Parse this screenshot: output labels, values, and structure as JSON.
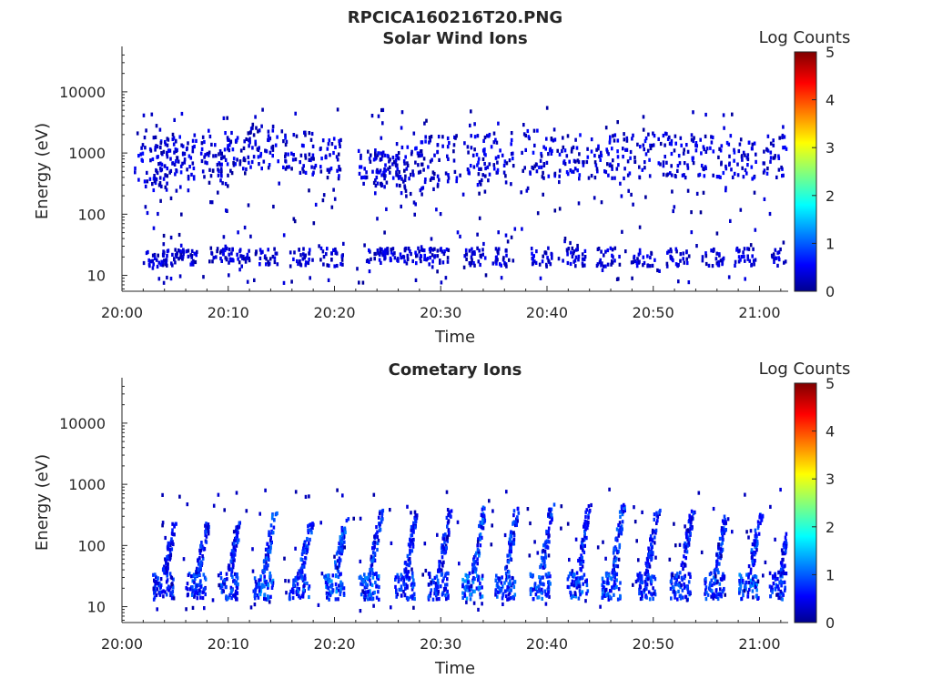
{
  "figure": {
    "title": "RPCICA160216T20.PNG"
  },
  "chart_data": [
    {
      "type": "heatmap",
      "title": "Solar Wind Ions",
      "xlabel": "Time",
      "ylabel": "Energy (eV)",
      "x_ticks": [
        "20:00",
        "20:10",
        "20:20",
        "20:30",
        "20:40",
        "20:50",
        "21:00"
      ],
      "y_ticks": [
        "10",
        "100",
        "1000",
        "10000"
      ],
      "y_scale": "log",
      "ylim": [
        5.5,
        45000
      ],
      "colorbar": {
        "label": "Log Counts",
        "ticks": [
          "0",
          "1",
          "2",
          "3",
          "4",
          "5"
        ],
        "range": [
          0,
          5
        ],
        "colormap": "jet"
      },
      "x_unit": "minutes after 20:00",
      "sweeps": [
        {
          "t": 2.6,
          "band": [
            14,
            28
          ],
          "mid": [
            300,
            2600
          ]
        },
        {
          "t": 4.2,
          "band": [
            15,
            30
          ],
          "mid": [
            250,
            2200
          ]
        },
        {
          "t": 5.4,
          "band": [
            16,
            30
          ],
          "mid": [
            400,
            2000
          ]
        },
        {
          "t": 8.8,
          "band": [
            18,
            32
          ],
          "mid": [
            300,
            2500
          ]
        },
        {
          "t": 10.5,
          "band": [
            15,
            30
          ],
          "mid": [
            500,
            2000
          ]
        },
        {
          "t": 13.1,
          "band": [
            16,
            30
          ],
          "mid": [
            600,
            3000
          ]
        },
        {
          "t": 16.4,
          "band": [
            15,
            30
          ],
          "mid": [
            500,
            2500
          ]
        },
        {
          "t": 19.2,
          "band": [
            15,
            30
          ],
          "mid": [
            400,
            1900
          ]
        },
        {
          "t": 23.6,
          "band": [
            17,
            30
          ],
          "mid": [
            300,
            1200
          ]
        },
        {
          "t": 25.1,
          "band": [
            18,
            30
          ],
          "mid": [
            400,
            1100
          ]
        },
        {
          "t": 26.9,
          "band": [
            17,
            30
          ],
          "mid": [
            200,
            1400
          ]
        },
        {
          "t": 29.2,
          "band": [
            17,
            30
          ],
          "mid": [
            300,
            2100
          ]
        },
        {
          "t": 32.6,
          "band": [
            15,
            30
          ],
          "mid": [
            300,
            2300
          ]
        },
        {
          "t": 35.4,
          "band": [
            15,
            30
          ],
          "mid": [
            300,
            2300
          ]
        },
        {
          "t": 38.9,
          "band": [
            15,
            30
          ],
          "mid": [
            400,
            2500
          ]
        },
        {
          "t": 42.0,
          "band": [
            15,
            30
          ],
          "mid": [
            400,
            2300
          ]
        },
        {
          "t": 45.2,
          "band": [
            15,
            30
          ],
          "mid": [
            400,
            2300
          ]
        },
        {
          "t": 48.5,
          "band": [
            15,
            30
          ],
          "mid": [
            400,
            2300
          ]
        },
        {
          "t": 51.8,
          "band": [
            15,
            30
          ],
          "mid": [
            400,
            2300
          ]
        },
        {
          "t": 55.0,
          "band": [
            15,
            30
          ],
          "mid": [
            400,
            2300
          ]
        },
        {
          "t": 58.2,
          "band": [
            15,
            30
          ],
          "mid": [
            400,
            2300
          ]
        },
        {
          "t": 61.7,
          "band": [
            15,
            30
          ],
          "mid": [
            400,
            2300
          ]
        }
      ]
    },
    {
      "type": "heatmap",
      "title": "Cometary Ions",
      "xlabel": "Time",
      "ylabel": "Energy (eV)",
      "x_ticks": [
        "20:00",
        "20:10",
        "20:20",
        "20:30",
        "20:40",
        "20:50",
        "21:00"
      ],
      "y_ticks": [
        "10",
        "100",
        "1000",
        "10000"
      ],
      "y_scale": "log",
      "ylim": [
        5.5,
        45000
      ],
      "colorbar": {
        "label": "Log Counts",
        "ticks": [
          "0",
          "1",
          "2",
          "3",
          "4",
          "5"
        ],
        "range": [
          0,
          5
        ],
        "colormap": "jet"
      },
      "x_unit": "minutes after 20:00",
      "sweeps": [
        {
          "t": 3.5,
          "band": [
            14,
            38
          ],
          "peak": 250,
          "level": 0.8
        },
        {
          "t": 6.6,
          "band": [
            14,
            38
          ],
          "peak": 250,
          "level": 0.9
        },
        {
          "t": 9.6,
          "band": [
            14,
            38
          ],
          "peak": 260,
          "level": 0.9
        },
        {
          "t": 12.9,
          "band": [
            14,
            38
          ],
          "peak": 400,
          "level": 1.1
        },
        {
          "t": 16.3,
          "band": [
            14,
            38
          ],
          "peak": 250,
          "level": 1.0
        },
        {
          "t": 19.6,
          "band": [
            14,
            38
          ],
          "peak": 300,
          "level": 1.1
        },
        {
          "t": 22.9,
          "band": [
            14,
            38
          ],
          "peak": 400,
          "level": 1.0
        },
        {
          "t": 26.2,
          "band": [
            14,
            38
          ],
          "peak": 350,
          "level": 0.9
        },
        {
          "t": 29.4,
          "band": [
            14,
            38
          ],
          "peak": 400,
          "level": 0.9
        },
        {
          "t": 32.6,
          "band": [
            14,
            38
          ],
          "peak": 450,
          "level": 1.1
        },
        {
          "t": 35.7,
          "band": [
            14,
            38
          ],
          "peak": 450,
          "level": 1.0
        },
        {
          "t": 39.0,
          "band": [
            14,
            38
          ],
          "peak": 500,
          "level": 1.0
        },
        {
          "t": 42.5,
          "band": [
            14,
            38
          ],
          "peak": 500,
          "level": 1.0
        },
        {
          "t": 45.7,
          "band": [
            14,
            38
          ],
          "peak": 500,
          "level": 1.0
        },
        {
          "t": 48.9,
          "band": [
            14,
            38
          ],
          "peak": 400,
          "level": 0.9
        },
        {
          "t": 52.2,
          "band": [
            14,
            38
          ],
          "peak": 400,
          "level": 0.9
        },
        {
          "t": 55.4,
          "band": [
            14,
            38
          ],
          "peak": 350,
          "level": 1.0
        },
        {
          "t": 58.6,
          "band": [
            14,
            38
          ],
          "peak": 350,
          "level": 1.1
        },
        {
          "t": 61.5,
          "band": [
            14,
            38
          ],
          "peak": 300,
          "level": 0.9
        }
      ]
    }
  ]
}
